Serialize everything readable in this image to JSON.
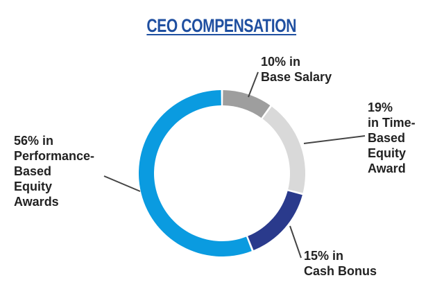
{
  "chart_data": {
    "type": "pie",
    "title": "CEO COMPENSATION",
    "donut": true,
    "categories": [
      "Base Salary",
      "Time-Based Equity Award",
      "Cash Bonus",
      "Performance-Based Equity Awards"
    ],
    "values": [
      10,
      19,
      15,
      56
    ],
    "unit": "%",
    "colors": [
      "#9e9e9e",
      "#d9d9d9",
      "#2a3a8c",
      "#0a9be0"
    ],
    "slice_labels": [
      {
        "lines": [
          "10% in",
          "Base Salary"
        ]
      },
      {
        "lines": [
          "19%",
          "in Time-",
          "Based",
          "Equity",
          "Award"
        ]
      },
      {
        "lines": [
          "15% in",
          "Cash Bonus"
        ]
      },
      {
        "lines": [
          "56% in",
          "Performance-",
          "Based",
          "Equity",
          "Awards"
        ]
      }
    ]
  }
}
